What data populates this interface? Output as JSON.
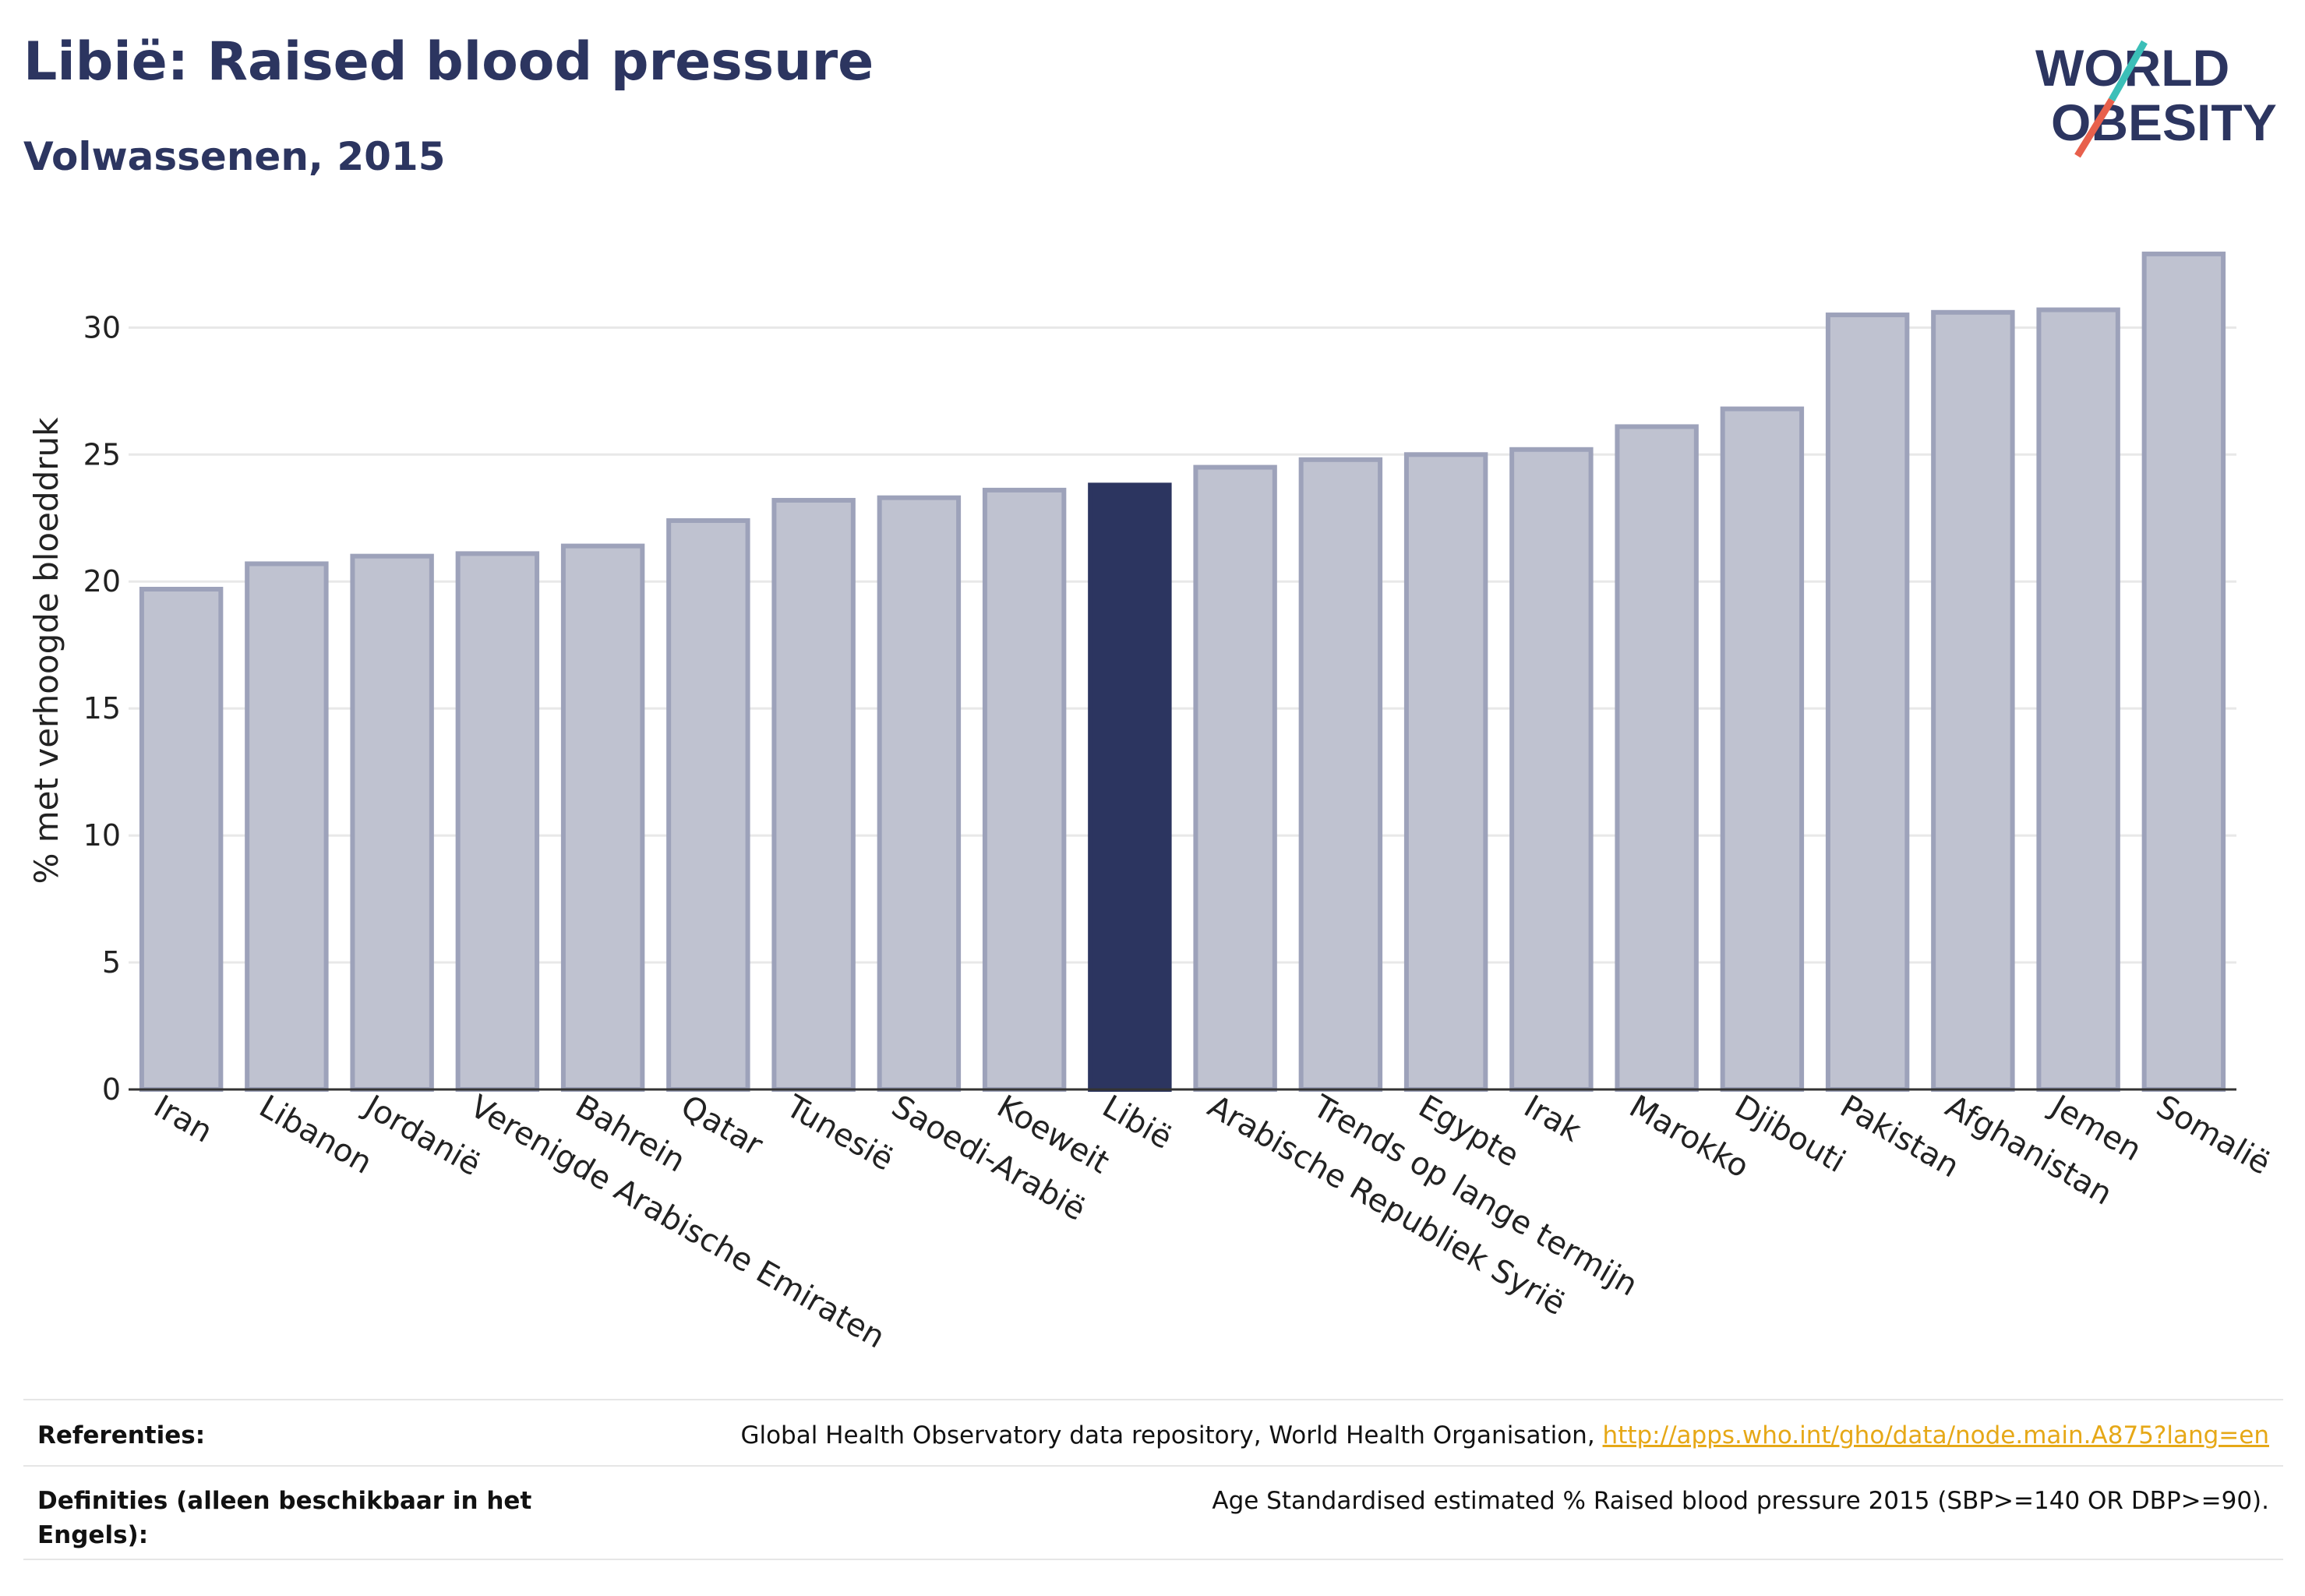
{
  "header": {
    "title": "Libië: Raised blood pressure",
    "subtitle": "Volwassenen, 2015"
  },
  "logo": {
    "line1": "WORLD",
    "line2": "OBESITY",
    "colors": {
      "text": "#2c3560",
      "slash_teal": "#3bbfb8",
      "slash_red": "#e8604c"
    }
  },
  "colors": {
    "bar": "#bfc2d0",
    "bar_stroke": "#9da2ba",
    "highlight": "#2c3560",
    "grid": "#e8e8e8",
    "axis": "#333333"
  },
  "chart_data": {
    "type": "bar",
    "categories": [
      "Iran",
      "Libanon",
      "Jordanië",
      "Verenigde Arabische Emiraten",
      "Bahrein",
      "Qatar",
      "Tunesië",
      "Saoedi-Arabië",
      "Koeweit",
      "Libië",
      "Arabische Republiek Syrië",
      "Trends op lange termijn",
      "Egypte",
      "Irak",
      "Marokko",
      "Djibouti",
      "Pakistan",
      "Afghanistan",
      "Jemen",
      "Somalië"
    ],
    "values": [
      19.7,
      20.7,
      21.0,
      21.1,
      21.4,
      22.4,
      23.2,
      23.3,
      23.6,
      23.8,
      24.5,
      24.8,
      25.0,
      25.2,
      26.1,
      26.8,
      30.5,
      30.6,
      30.7,
      32.9
    ],
    "highlight": "Libië",
    "ylabel": "% met verhoogde bloeddruk",
    "xlabel": "",
    "ylim": [
      0,
      34
    ],
    "yticks": [
      0,
      5,
      10,
      15,
      20,
      25,
      30
    ],
    "grid": true
  },
  "footer": {
    "references_label": "Referenties:",
    "references_text": "Global Health Observatory data repository, World Health Organisation, ",
    "references_link": "http://apps.who.int/gho/data/node.main.A875?lang=en",
    "definitions_label": "Definities (alleen beschikbaar in het Engels):",
    "definitions_text": "Age Standardised estimated % Raised blood pressure 2015 (SBP>=140 OR DBP>=90)."
  }
}
